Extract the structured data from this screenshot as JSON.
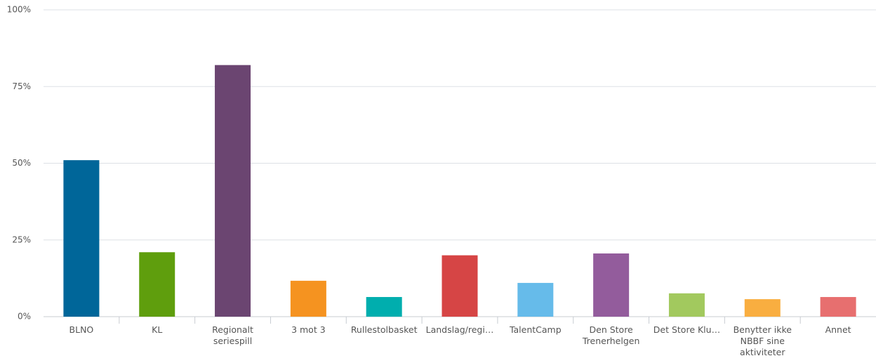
{
  "chart_data": {
    "type": "bar",
    "categories": [
      "BLNO",
      "KL",
      "Regionalt seriespill",
      "3 mot 3",
      "Rullestolbasket",
      "Landslag/regi…",
      "TalentCamp",
      "Den Store Trenerhelgen",
      "Det Store Klu…",
      "Benytter ikke NBBF sine aktiviteter",
      "Annet"
    ],
    "values": [
      51,
      21,
      82,
      11.7,
      6.4,
      20,
      11,
      20.6,
      7.6,
      5.7,
      6.4
    ],
    "colors": [
      "#006699",
      "#5f9e0d",
      "#6b4571",
      "#f59320",
      "#00aeae",
      "#d64545",
      "#66bbea",
      "#935c9c",
      "#a2c95e",
      "#f9ae40",
      "#e76f6f"
    ],
    "ylim": [
      0,
      100
    ],
    "yticks": [
      {
        "value": 0,
        "label": "0%"
      },
      {
        "value": 25,
        "label": "25%"
      },
      {
        "value": 50,
        "label": "50%"
      },
      {
        "value": 75,
        "label": "75%"
      },
      {
        "value": 100,
        "label": "100%"
      }
    ],
    "grid": true
  }
}
